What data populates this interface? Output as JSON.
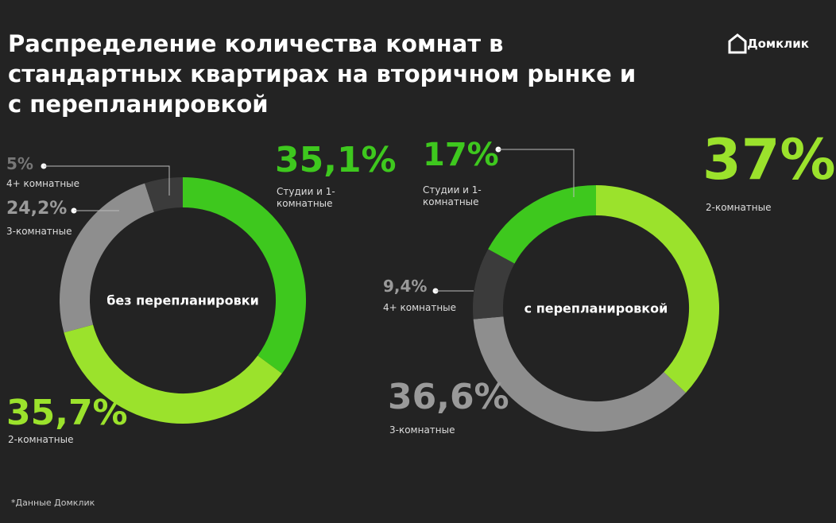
{
  "title": "Распределение количества комнат в стандартных квартирах на вторичном рынке и с перепланировкой",
  "brand": "Домклик",
  "note": "*Данные Домклик",
  "chart_data": [
    {
      "type": "pie",
      "title": "без перепланировки",
      "categories": [
        "Студии и 1-комнатные",
        "2-комнатные",
        "3-комнатные",
        "4+ комнатные"
      ],
      "values": [
        35.1,
        35.7,
        24.2,
        5
      ],
      "value_labels": [
        "35,1%",
        "35,7%",
        "24,2%",
        "5%"
      ],
      "colors": [
        "#3ec81e",
        "#9be22c",
        "#8e8e8e",
        "#3b3b3b"
      ]
    },
    {
      "type": "pie",
      "title": "с перепланировкой",
      "categories": [
        "2-комнатные",
        "3-комнатные",
        "4+ комнатные",
        "Студии и 1-комнатные"
      ],
      "values": [
        37,
        36.6,
        9.4,
        17
      ],
      "value_labels": [
        "37%",
        "36,6%",
        "9,4%",
        "17%"
      ],
      "colors": [
        "#9be22c",
        "#8e8e8e",
        "#3b3b3b",
        "#3ec81e"
      ]
    }
  ]
}
